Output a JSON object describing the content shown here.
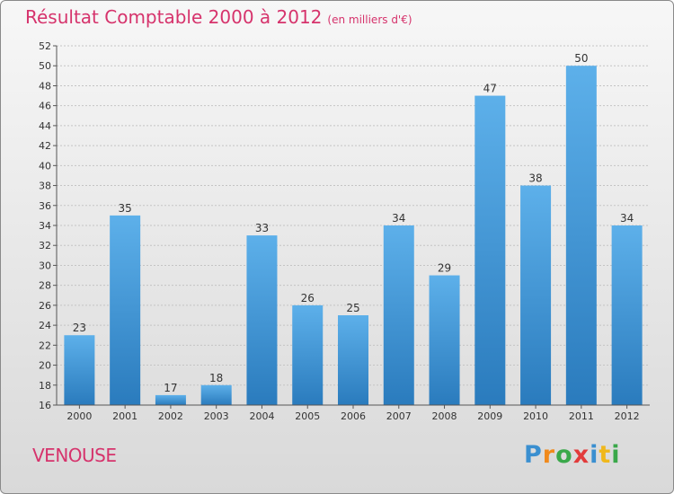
{
  "header": {
    "title": "Résultat Comptable 2000 à 2012",
    "subtitle": "(en milliers d'€)"
  },
  "commune": "VENOUSE",
  "logo": {
    "letters": [
      "P",
      "r",
      "o",
      "x",
      "i",
      "t",
      "i"
    ],
    "colors": [
      "#3a8fd0",
      "#f08a1c",
      "#3aa84a",
      "#e23b3b",
      "#3a8fd0",
      "#f0b81c",
      "#3aa84a"
    ]
  },
  "chart_data": {
    "type": "bar",
    "title": "Résultat Comptable 2000 à 2012",
    "subtitle": "(en milliers d'€)",
    "categories": [
      "2000",
      "2001",
      "2002",
      "2003",
      "2004",
      "2005",
      "2006",
      "2007",
      "2008",
      "2009",
      "2010",
      "2011",
      "2012"
    ],
    "values": [
      23,
      35,
      17,
      18,
      33,
      26,
      25,
      34,
      29,
      47,
      38,
      50,
      34
    ],
    "ylim": [
      16,
      52
    ],
    "yticks": [
      16,
      18,
      20,
      22,
      24,
      26,
      28,
      30,
      32,
      34,
      36,
      38,
      40,
      42,
      44,
      46,
      48,
      50,
      52
    ],
    "grid": true,
    "bar_color": "#3a8fd0",
    "label_color": "#333333"
  }
}
